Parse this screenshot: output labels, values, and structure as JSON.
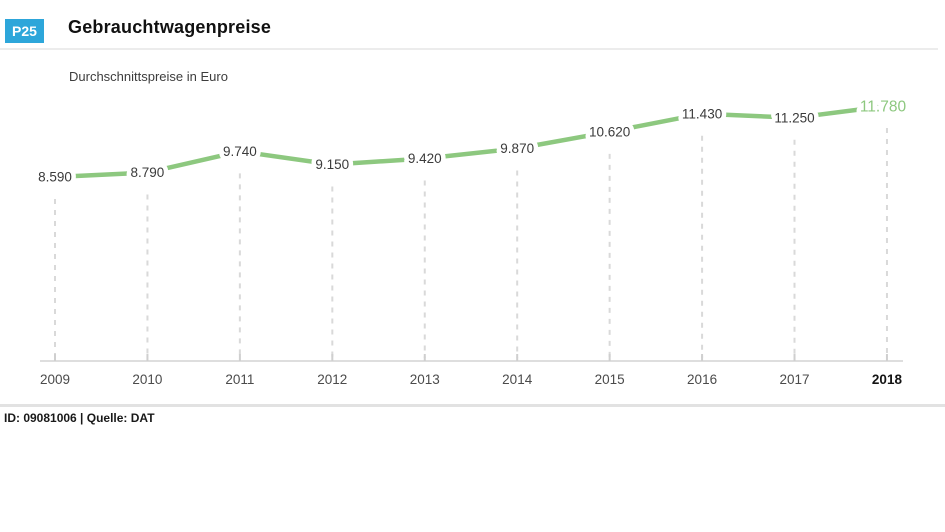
{
  "header": {
    "badge": "P25",
    "title": "Gebrauchtwagenpreise"
  },
  "footer": {
    "text": "ID: 09081006 | Quelle: DAT"
  },
  "colors": {
    "accent_blue": "#2da6da",
    "line_green": "#8dc87f",
    "grid_gray": "#d9d9d9",
    "axis_gray": "#dedede",
    "tick_gray": "#cfcfcf",
    "value_label_gray": "#3b3b3b",
    "year_label_gray": "#4b4b4b"
  },
  "chart_data": {
    "type": "line",
    "title": "Gebrauchtwagenpreise",
    "subtitle": "Durchschnittspreise in Euro",
    "x": [
      "2009",
      "2010",
      "2011",
      "2012",
      "2013",
      "2014",
      "2015",
      "2016",
      "2017",
      "2018"
    ],
    "values": [
      8590,
      8790,
      9740,
      9150,
      9420,
      9870,
      10620,
      11430,
      11250,
      11780
    ],
    "value_labels": [
      "8.590",
      "8.790",
      "9.740",
      "9.150",
      "9.420",
      "9.870",
      "10.620",
      "11.430",
      "11.250",
      "11.780"
    ],
    "unit": "Euro",
    "line_color": "#8dc87f",
    "highlight_last_index": 9,
    "legend": "none",
    "grid": "dashed vertical drop lines from each point to x-axis",
    "xlabel": "",
    "ylabel": "Durchschnittspreise in Euro",
    "y_axis_visible": false,
    "effective_value_range": [
      8400,
      11900
    ]
  }
}
